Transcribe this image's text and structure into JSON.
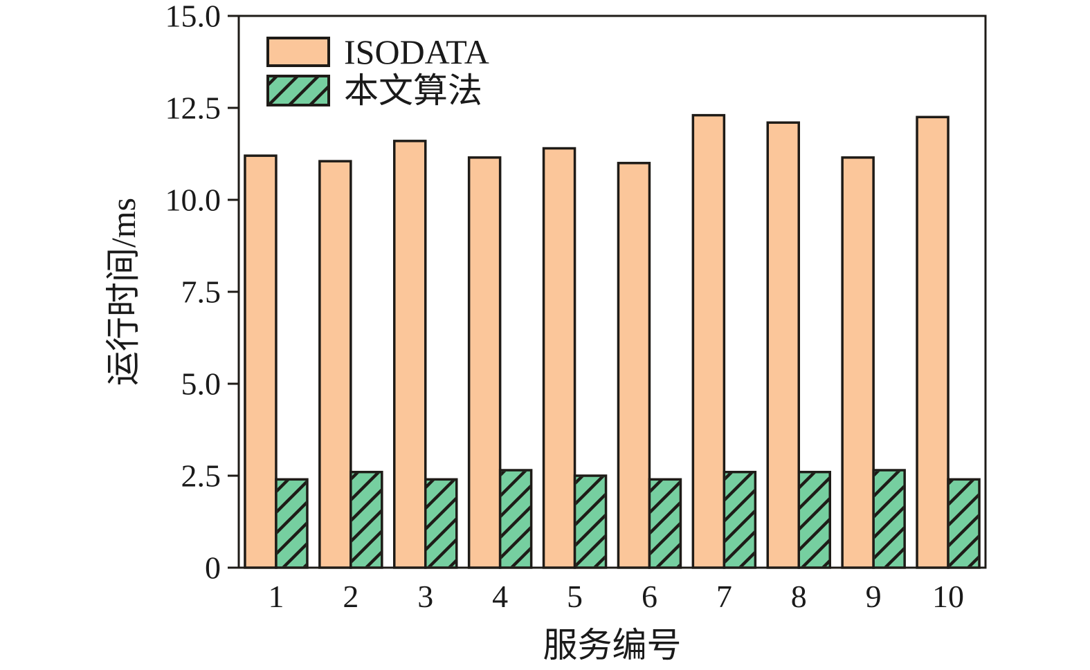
{
  "figure": {
    "background": "#FFFFFF"
  },
  "chart_data": {
    "type": "bar",
    "title": "",
    "xlabel": "服务编号",
    "ylabel": "运行时间/ms",
    "categories": [
      "1",
      "2",
      "3",
      "4",
      "5",
      "6",
      "7",
      "8",
      "9",
      "10"
    ],
    "series": [
      {
        "id": "isodata",
        "name": "ISODATA",
        "color": "#FBC69A",
        "hatch": "none",
        "values": [
          11.2,
          11.05,
          11.6,
          11.15,
          11.4,
          11.0,
          12.3,
          12.1,
          11.15,
          12.25
        ]
      },
      {
        "id": "proposed",
        "name": "本文算法",
        "color": "#76CFA0",
        "hatch": "diagonal",
        "values": [
          2.4,
          2.6,
          2.4,
          2.65,
          2.5,
          2.4,
          2.6,
          2.6,
          2.65,
          2.4
        ]
      }
    ],
    "ylim": [
      0,
      15
    ],
    "yticks": [
      0,
      2.5,
      5,
      7.5,
      10,
      12.5,
      15
    ],
    "ytick_labels": [
      "0",
      "2.5",
      "5.0",
      "7.5",
      "10.0",
      "12.5",
      "15.0"
    ],
    "grid": false,
    "legend_position": "upper left",
    "colors": {
      "edge": "#1E1B17",
      "text": "#1A1A1A",
      "background": "#FFFFFF"
    }
  }
}
